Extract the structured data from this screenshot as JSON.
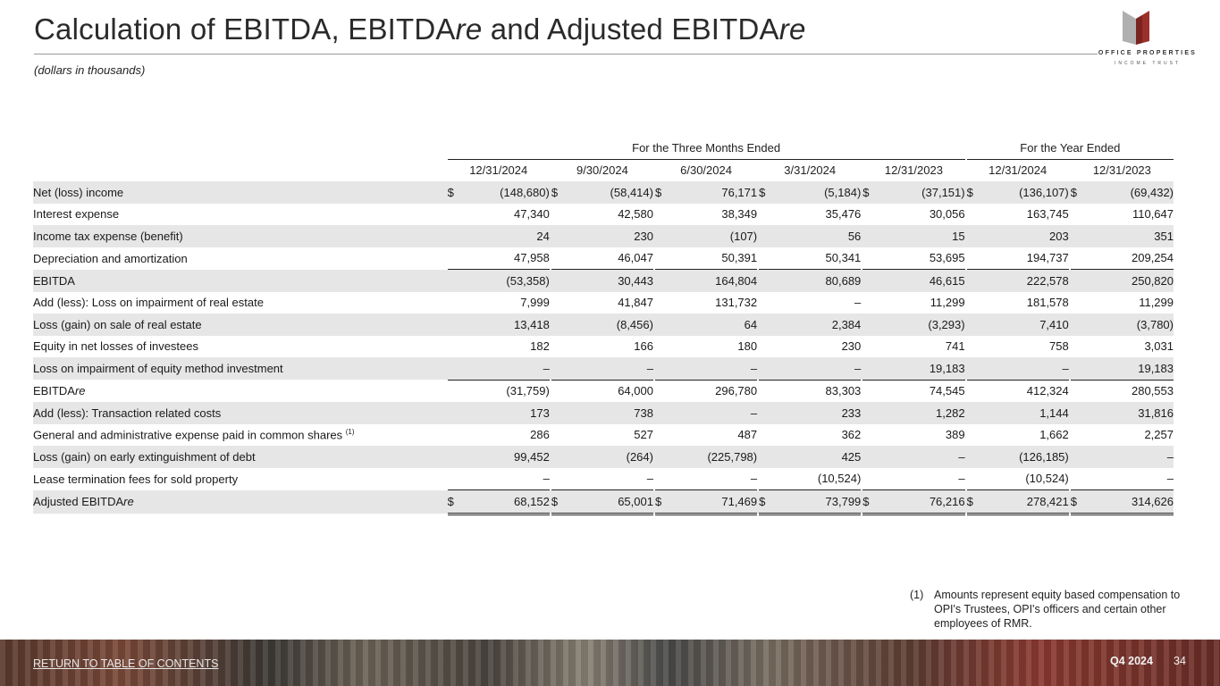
{
  "title": {
    "part1": "Calculation of EBITDA, EBITDA",
    "re1": "re",
    "part2": " and Adjusted EBITDA",
    "re2": "re"
  },
  "subtitle": "(dollars in thousands)",
  "logo": {
    "line1": "OFFICE PROPERTIES",
    "line2": "INCOME TRUST"
  },
  "table": {
    "group_headers": {
      "three_months": "For the Three Months Ended",
      "year": "For the Year Ended"
    },
    "columns": [
      "12/31/2024",
      "9/30/2024",
      "6/30/2024",
      "3/31/2024",
      "12/31/2023",
      "12/31/2024",
      "12/31/2023"
    ],
    "currency_symbol": "$",
    "rows": [
      {
        "label": "Net (loss) income",
        "values": [
          "(148,680)",
          "(58,414)",
          "76,171",
          "(5,184)",
          "(37,151)",
          "(136,107)",
          "(69,432)"
        ]
      },
      {
        "label": "Interest expense",
        "values": [
          "47,340",
          "42,580",
          "38,349",
          "35,476",
          "30,056",
          "163,745",
          "110,647"
        ]
      },
      {
        "label": "Income tax expense (benefit)",
        "values": [
          "24",
          "230",
          "(107)",
          "56",
          "15",
          "203",
          "351"
        ]
      },
      {
        "label": "Depreciation and amortization",
        "values": [
          "47,958",
          "46,047",
          "50,391",
          "50,341",
          "53,695",
          "194,737",
          "209,254"
        ]
      },
      {
        "label": "EBITDA",
        "values": [
          "(53,358)",
          "30,443",
          "164,804",
          "80,689",
          "46,615",
          "222,578",
          "250,820"
        ]
      },
      {
        "label": "Add (less): Loss on impairment of real estate",
        "values": [
          "7,999",
          "41,847",
          "131,732",
          "–",
          "11,299",
          "181,578",
          "11,299"
        ]
      },
      {
        "label": "Loss (gain) on sale of real estate",
        "values": [
          "13,418",
          "(8,456)",
          "64",
          "2,384",
          "(3,293)",
          "7,410",
          "(3,780)"
        ]
      },
      {
        "label": "Equity in net losses of investees",
        "values": [
          "182",
          "166",
          "180",
          "230",
          "741",
          "758",
          "3,031"
        ]
      },
      {
        "label": "Loss on impairment of equity method investment",
        "values": [
          "–",
          "–",
          "–",
          "–",
          "19,183",
          "–",
          "19,183"
        ]
      },
      {
        "label": "EBITDA",
        "label_italic": "re",
        "values": [
          "(31,759)",
          "64,000",
          "296,780",
          "83,303",
          "74,545",
          "412,324",
          "280,553"
        ]
      },
      {
        "label": "Add (less): Transaction related costs",
        "values": [
          "173",
          "738",
          "–",
          "233",
          "1,282",
          "1,144",
          "31,816"
        ]
      },
      {
        "label": "General and administrative expense paid in common shares",
        "label_sup": "(1)",
        "values": [
          "286",
          "527",
          "487",
          "362",
          "389",
          "1,662",
          "2,257"
        ]
      },
      {
        "label": "Loss (gain) on early extinguishment of debt",
        "values": [
          "99,452",
          "(264)",
          "(225,798)",
          "425",
          "–",
          "(126,185)",
          "–"
        ]
      },
      {
        "label": "Lease termination fees for sold property",
        "values": [
          "–",
          "–",
          "–",
          "(10,524)",
          "–",
          "(10,524)",
          "–"
        ]
      },
      {
        "label": "Adjusted EBITDA",
        "label_italic": "re",
        "values": [
          "68,152",
          "65,001",
          "71,469",
          "73,799",
          "76,216",
          "278,421",
          "314,626"
        ]
      }
    ]
  },
  "footnote": {
    "number": "(1)",
    "text": "Amounts represent equity based compensation to OPI's Trustees, OPI's officers and certain other employees of RMR."
  },
  "footer": {
    "return_link": "RETURN TO TABLE OF CONTENTS",
    "quarter": "Q4 2024",
    "page": "34"
  }
}
